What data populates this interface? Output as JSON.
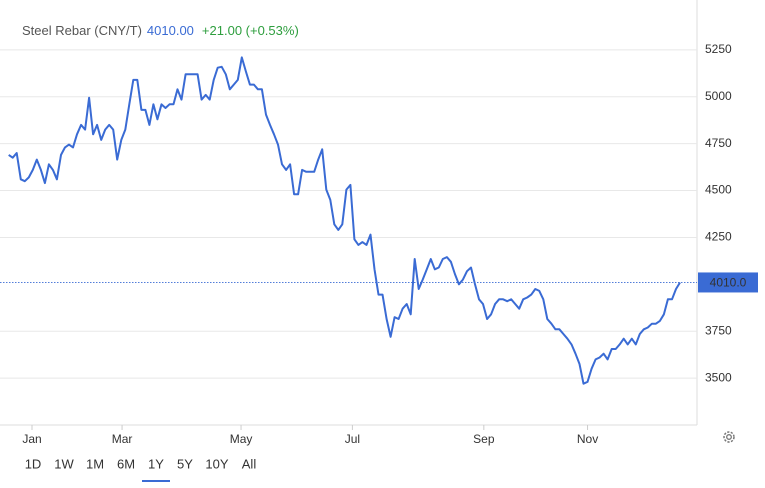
{
  "header": {
    "name": "Steel Rebar (CNY/T)",
    "price": "4010.00",
    "change": "+21.00 (+0.53%)"
  },
  "chart_data": {
    "type": "line",
    "series": [
      {
        "color": "#3a6bd4",
        "values": [
          4690,
          4675,
          4700,
          4560,
          4550,
          4570,
          4610,
          4665,
          4610,
          4540,
          4640,
          4610,
          4560,
          4690,
          4730,
          4745,
          4730,
          4800,
          4850,
          4825,
          4995,
          4800,
          4850,
          4770,
          4825,
          4850,
          4825,
          4665,
          4770,
          4825,
          4960,
          5090,
          5090,
          4930,
          4930,
          4850,
          4960,
          4880,
          4960,
          4940,
          4960,
          4960,
          5040,
          4985,
          5120,
          5120,
          5120,
          5120,
          4985,
          5010,
          4985,
          5090,
          5155,
          5160,
          5120,
          5040,
          5065,
          5090,
          5210,
          5135,
          5065,
          5065,
          5040,
          5040,
          4905,
          4850,
          4800,
          4745,
          4640,
          4610,
          4640,
          4480,
          4480,
          4610,
          4600,
          4600,
          4600,
          4665,
          4720,
          4505,
          4450,
          4320,
          4290,
          4320,
          4505,
          4530,
          4240,
          4210,
          4225,
          4210,
          4265,
          4080,
          3945,
          3945,
          3815,
          3720,
          3825,
          3815,
          3870,
          3895,
          3840,
          4135,
          3975,
          4025,
          4080,
          4135,
          4080,
          4090,
          4135,
          4145,
          4120,
          4055,
          4000,
          4025,
          4070,
          4090,
          4000,
          3920,
          3895,
          3815,
          3840,
          3895,
          3920,
          3920,
          3910,
          3920,
          3895,
          3870,
          3920,
          3930,
          3945,
          3975,
          3965,
          3920,
          3815,
          3790,
          3760,
          3760,
          3735,
          3710,
          3680,
          3630,
          3575,
          3470,
          3480,
          3550,
          3600,
          3610,
          3630,
          3600,
          3655,
          3655,
          3680,
          3710,
          3680,
          3710,
          3680,
          3735,
          3760,
          3770,
          3790,
          3790,
          3805,
          3840,
          3920,
          3920,
          3975,
          4010
        ]
      }
    ],
    "xlim": [
      0,
      167
    ],
    "xticks": [
      {
        "value": 5.8,
        "label": "Jan"
      },
      {
        "value": 28.2,
        "label": "Mar"
      },
      {
        "value": 57.8,
        "label": "May"
      },
      {
        "value": 85.5,
        "label": "Jul"
      },
      {
        "value": 118.2,
        "label": "Sep"
      },
      {
        "value": 144,
        "label": "Nov"
      }
    ],
    "ylim": [
      3250,
      5516
    ],
    "yticks": [
      3500,
      3750,
      4250,
      4500,
      4750,
      5000,
      5250
    ],
    "grid": true,
    "last": {
      "value": 4010,
      "label": "4010.0"
    }
  },
  "ranges": [
    "1D",
    "1W",
    "1M",
    "6M",
    "1Y",
    "5Y",
    "10Y",
    "All"
  ],
  "selected_range": "1Y"
}
